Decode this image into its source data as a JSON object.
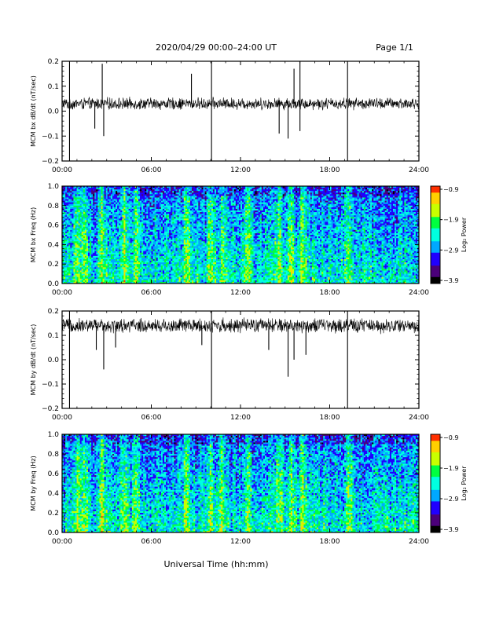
{
  "header": {
    "title": "2020/04/29  00:00–24:00 UT",
    "page_label": "Page 1/1"
  },
  "footer": {
    "xlabel": "Universal Time (hh:mm)"
  },
  "colors": {
    "axis": "#000000",
    "trace": "#000000",
    "colormap": [
      "#000000",
      "#4b007a",
      "#2000ff",
      "#00a8ff",
      "#00ffe0",
      "#00ff40",
      "#c8ff00",
      "#ffd000",
      "#ff3000"
    ]
  },
  "chart_data": [
    {
      "type": "line",
      "ylabel": "MCM bx dB/dt (nT/sec)",
      "xlim": [
        0,
        24
      ],
      "ylim": [
        -0.2,
        0.2
      ],
      "x_ticks": [
        "00:00",
        "06:00",
        "12:00",
        "18:00",
        "24:00"
      ],
      "y_ticks": [
        "0.2",
        "0.1",
        "0.0",
        "−0.1",
        "−0.2"
      ],
      "baseline": 0.03,
      "noise_amplitude": 0.02,
      "spikes": [
        {
          "x": 0.5,
          "y": 0.2
        },
        {
          "x": 0.5,
          "y": -0.2
        },
        {
          "x": 2.2,
          "y": -0.07
        },
        {
          "x": 2.7,
          "y": 0.19
        },
        {
          "x": 2.8,
          "y": -0.1
        },
        {
          "x": 8.7,
          "y": 0.15
        },
        {
          "x": 10.05,
          "y": 0.2
        },
        {
          "x": 10.05,
          "y": -0.2
        },
        {
          "x": 14.6,
          "y": -0.09
        },
        {
          "x": 15.2,
          "y": -0.11
        },
        {
          "x": 15.6,
          "y": 0.17
        },
        {
          "x": 16.0,
          "y": 0.2
        },
        {
          "x": 16.0,
          "y": -0.08
        },
        {
          "x": 19.2,
          "y": 0.2
        },
        {
          "x": 19.2,
          "y": -0.2
        }
      ]
    },
    {
      "type": "heatmap",
      "ylabel": "MCM bx Freq (Hz)",
      "xlim": [
        0,
        24
      ],
      "ylim": [
        0.0,
        1.0
      ],
      "x_ticks": [
        "00:00",
        "06:00",
        "12:00",
        "18:00",
        "24:00"
      ],
      "y_ticks": [
        "1.0",
        "0.8",
        "0.6",
        "0.4",
        "0.2",
        "0.0"
      ],
      "colorbar": {
        "label": "Log₂ Power",
        "range": [
          -3.9,
          -0.9
        ],
        "ticks": [
          "−0.9",
          "−1.9",
          "−2.9",
          "−3.9"
        ]
      },
      "bright_times": [
        1.0,
        1.5,
        2.7,
        4.2,
        5.0,
        8.4,
        10.0,
        10.8,
        12.5,
        14.6,
        15.4,
        16.2,
        19.3
      ]
    },
    {
      "type": "line",
      "ylabel": "MCM by dB/dt (nT/sec)",
      "xlim": [
        0,
        24
      ],
      "ylim": [
        -0.2,
        0.2
      ],
      "x_ticks": [
        "00:00",
        "06:00",
        "12:00",
        "18:00",
        "24:00"
      ],
      "y_ticks": [
        "0.2",
        "0.1",
        "0.0",
        "−0.1",
        "−0.2"
      ],
      "baseline": 0.14,
      "noise_amplitude": 0.025,
      "spikes": [
        {
          "x": 0.5,
          "y": 0.2
        },
        {
          "x": 0.5,
          "y": -0.2
        },
        {
          "x": 2.3,
          "y": 0.04
        },
        {
          "x": 2.8,
          "y": -0.04
        },
        {
          "x": 3.6,
          "y": 0.05
        },
        {
          "x": 9.4,
          "y": 0.06
        },
        {
          "x": 10.05,
          "y": 0.2
        },
        {
          "x": 10.05,
          "y": -0.2
        },
        {
          "x": 13.9,
          "y": 0.04
        },
        {
          "x": 15.2,
          "y": -0.07
        },
        {
          "x": 15.6,
          "y": 0.0
        },
        {
          "x": 16.4,
          "y": 0.02
        },
        {
          "x": 19.2,
          "y": 0.2
        },
        {
          "x": 19.2,
          "y": -0.2
        }
      ]
    },
    {
      "type": "heatmap",
      "ylabel": "MCM by Freq (Hz)",
      "xlim": [
        0,
        24
      ],
      "ylim": [
        0.0,
        1.0
      ],
      "x_ticks": [
        "00:00",
        "06:00",
        "12:00",
        "18:00",
        "24:00"
      ],
      "y_ticks": [
        "1.0",
        "0.8",
        "0.6",
        "0.4",
        "0.2",
        "0.0"
      ],
      "colorbar": {
        "label": "Log₂ Power",
        "range": [
          -3.9,
          -0.9
        ],
        "ticks": [
          "−0.9",
          "−1.9",
          "−2.9",
          "−3.9"
        ]
      },
      "bright_times": [
        1.0,
        1.5,
        2.7,
        4.2,
        5.0,
        8.4,
        10.0,
        10.8,
        12.5,
        14.6,
        15.4,
        16.2,
        19.3
      ]
    }
  ]
}
